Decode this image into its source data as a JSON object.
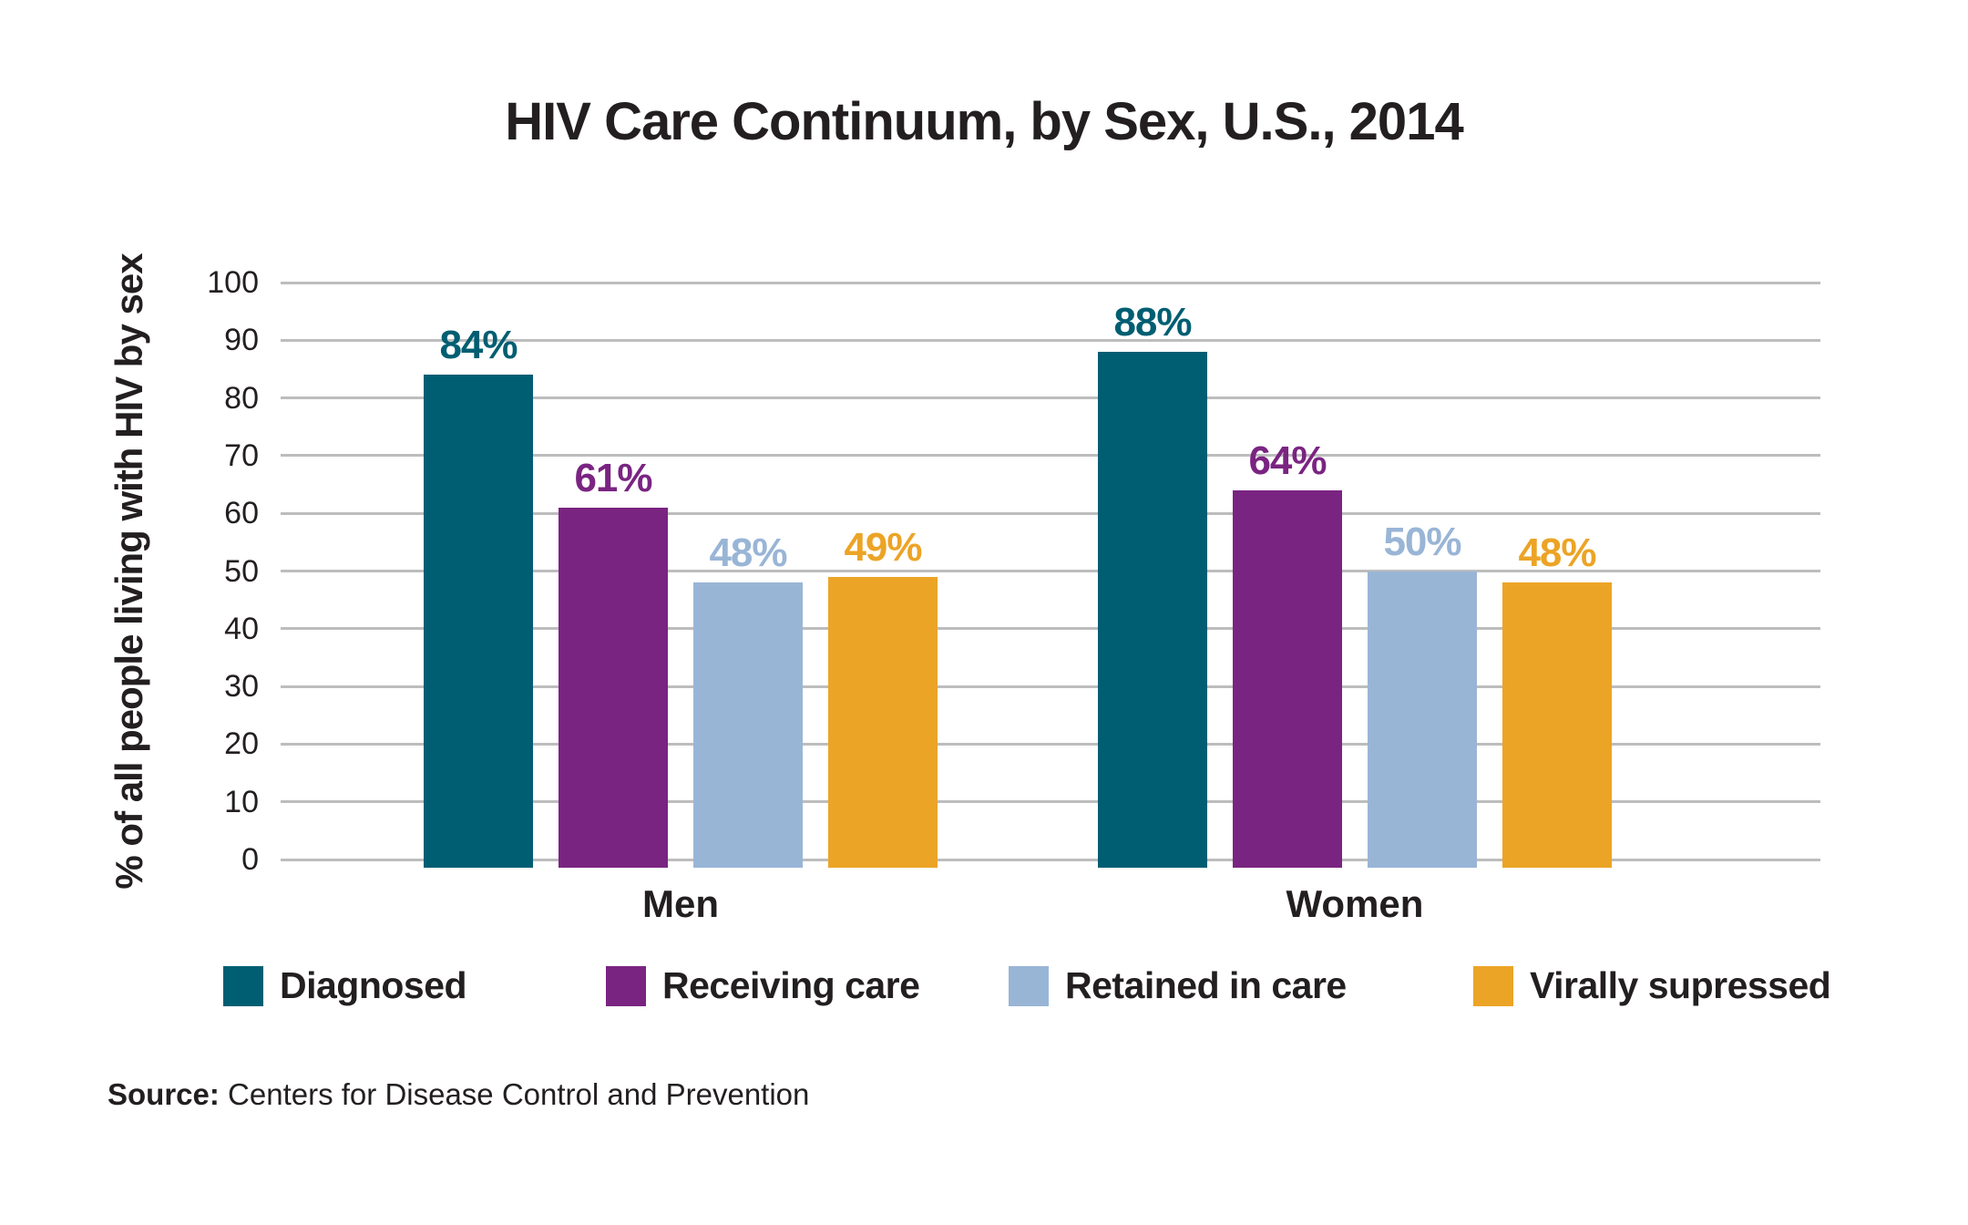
{
  "title": "HIV Care Continuum, by Sex, U.S., 2014",
  "source": {
    "label": "Source:",
    "text": "Centers for Disease Control and Prevention"
  },
  "colors": {
    "diagnosed": "#005E72",
    "receiving_care": "#7A2482",
    "retained_in_care": "#99B5D6",
    "virally_supressed": "#ECA426",
    "gridline": "#BDBDBD",
    "text": "#231F20"
  },
  "chart_data": {
    "type": "bar",
    "title": "HIV Care Continuum, by Sex, U.S., 2014",
    "xlabel": "",
    "ylabel": "% of all people living with HIV by sex",
    "ylim": [
      0,
      100
    ],
    "yticks": [
      0,
      10,
      20,
      30,
      40,
      50,
      60,
      70,
      80,
      90,
      100
    ],
    "grid": true,
    "legend_position": "bottom",
    "categories": [
      "Men",
      "Women"
    ],
    "series": [
      {
        "name": "Diagnosed",
        "color": "#005E72",
        "values": [
          84,
          88
        ],
        "labels": [
          "84%",
          "88%"
        ]
      },
      {
        "name": "Receiving care",
        "color": "#7A2482",
        "values": [
          61,
          64
        ],
        "labels": [
          "61%",
          "64%"
        ]
      },
      {
        "name": "Retained in care",
        "color": "#99B5D6",
        "values": [
          48,
          50
        ],
        "labels": [
          "48%",
          "50%"
        ]
      },
      {
        "name": "Virally supressed",
        "color": "#ECA426",
        "values": [
          49,
          48
        ],
        "labels": [
          "49%",
          "48%"
        ]
      }
    ]
  }
}
